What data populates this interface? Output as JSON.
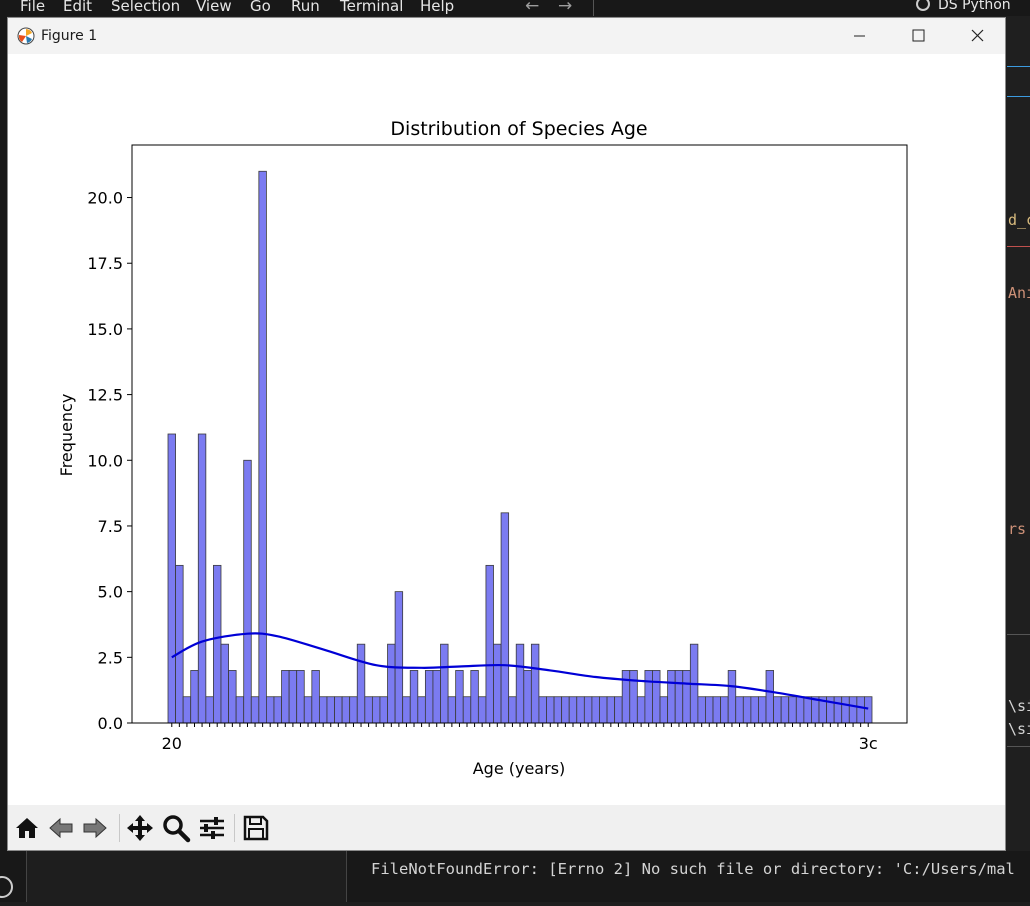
{
  "menu": [
    "File",
    "Edit",
    "Selection",
    "View",
    "Go",
    "Run",
    "Terminal",
    "Help"
  ],
  "command_center": "DS Python",
  "window": {
    "title": "Figure 1"
  },
  "right_panel": [
    "d_c",
    "Ani",
    "rs",
    "\\si",
    "\\si"
  ],
  "terminal": {
    "line": "FileNotFoundError: [Errno 2] No such file or directory: 'C:/Users/mal"
  },
  "toolbar": [
    "home-icon",
    "back-icon",
    "forward-icon",
    "pan-icon",
    "zoom-icon",
    "configure-icon",
    "save-icon"
  ],
  "colors": {
    "bar_fill": "#7b7bf1",
    "bar_edge": "#3a3a3a",
    "kde": "#0000d6",
    "accent": "#0078d4"
  },
  "chart_data": {
    "type": "bar",
    "title": "Distribution of Species Age",
    "xlabel": "Age (years)",
    "ylabel": "Frequency",
    "ylim": [
      0,
      22
    ],
    "yticks": [
      "0.0",
      "2.5",
      "5.0",
      "7.5",
      "10.0",
      "12.5",
      "15.0",
      "17.5",
      "20.0"
    ],
    "xtick_first": "20",
    "xtick_last": "3c",
    "values": [
      11,
      6,
      1,
      2,
      11,
      1,
      6,
      3,
      2,
      1,
      10,
      1,
      21,
      1,
      1,
      2,
      2,
      2,
      1,
      2,
      1,
      1,
      1,
      1,
      1,
      3,
      1,
      1,
      1,
      3,
      5,
      1,
      2,
      1,
      2,
      2,
      3,
      1,
      2,
      1,
      2,
      1,
      6,
      3,
      8,
      1,
      3,
      2,
      3,
      1,
      1,
      1,
      1,
      1,
      1,
      1,
      1,
      1,
      1,
      1,
      2,
      2,
      1,
      2,
      2,
      1,
      2,
      2,
      2,
      3,
      1,
      1,
      1,
      1,
      2,
      1,
      1,
      1,
      1,
      2,
      1,
      1,
      1,
      1,
      1,
      1,
      1,
      1,
      1,
      1,
      1,
      1,
      1
    ],
    "kde": [
      [
        0,
        2.5
      ],
      [
        4,
        3.1
      ],
      [
        10,
        3.4
      ],
      [
        14,
        3.3
      ],
      [
        20,
        2.8
      ],
      [
        27,
        2.2
      ],
      [
        33,
        2.1
      ],
      [
        38,
        2.15
      ],
      [
        44,
        2.2
      ],
      [
        50,
        2.0
      ],
      [
        56,
        1.75
      ],
      [
        62,
        1.6
      ],
      [
        68,
        1.5
      ],
      [
        74,
        1.4
      ],
      [
        80,
        1.15
      ],
      [
        86,
        0.85
      ],
      [
        92,
        0.55
      ]
    ]
  }
}
